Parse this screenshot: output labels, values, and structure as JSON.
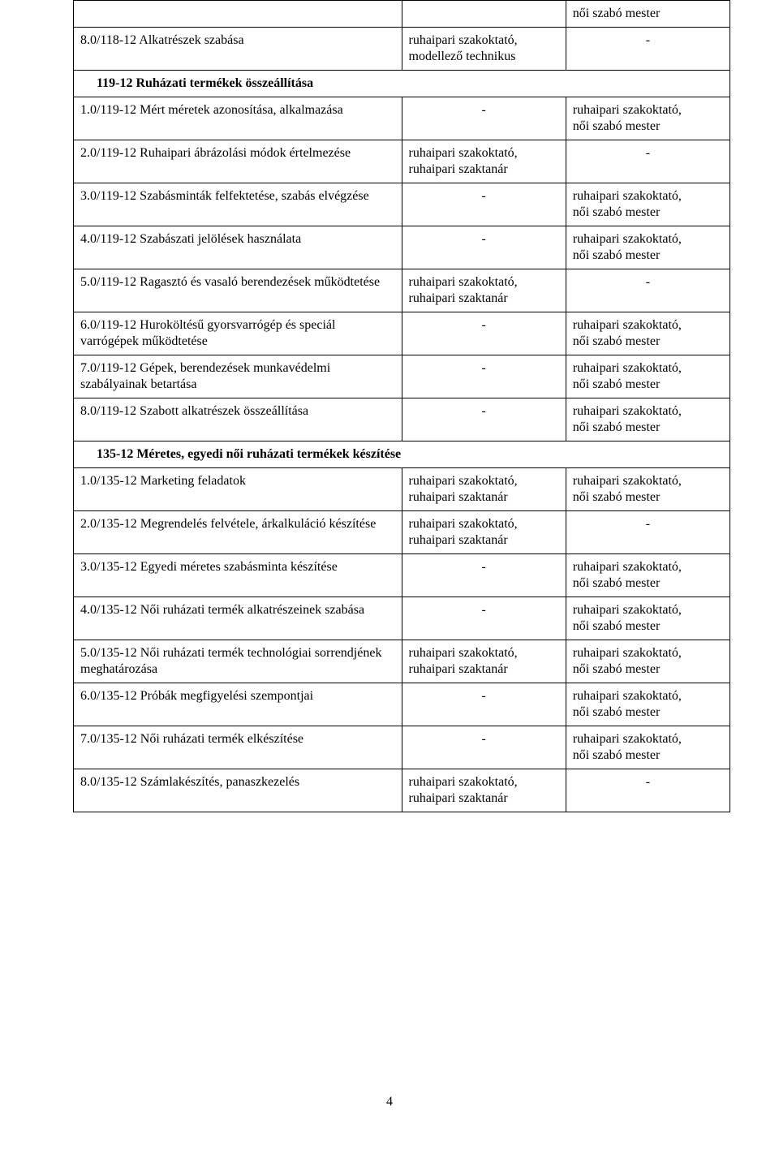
{
  "page_number": "4",
  "text": {
    "szakoktato_tech": "ruhaipari szakoktató,\nmodellező technikus",
    "szakoktato_szaktanar": "ruhaipari szakoktató,\nruhaipari szaktanár",
    "szakoktato_mester": "ruhaipari szakoktató,\nnői szabó mester",
    "mester_only": "női szabó mester",
    "dash": "-"
  },
  "rows": [
    {
      "type": "row",
      "c1": "",
      "c2": "",
      "c3_key": "mester_only"
    },
    {
      "type": "row",
      "c1": "8.0/118-12 Alkatrészek szabása",
      "c2_key": "szakoktato_tech",
      "c3_key": "dash",
      "c3_center": true
    },
    {
      "type": "header",
      "c1": "119-12 Ruházati termékek összeállítása"
    },
    {
      "type": "row",
      "c1": "1.0/119-12 Mért méretek azonosítása, alkalmazása",
      "c2_key": "dash",
      "c2_center": true,
      "c3_key": "szakoktato_mester"
    },
    {
      "type": "row",
      "c1": "2.0/119-12 Ruhaipari ábrázolási módok értelmezése",
      "c2_key": "szakoktato_szaktanar",
      "c3_key": "dash",
      "c3_center": true
    },
    {
      "type": "row",
      "c1": "3.0/119-12 Szabásminták felfektetése, szabás elvégzése",
      "c2_key": "dash",
      "c2_center": true,
      "c3_key": "szakoktato_mester"
    },
    {
      "type": "row",
      "c1": "4.0/119-12 Szabászati jelölések használata",
      "c2_key": "dash",
      "c2_center": true,
      "c3_key": "szakoktato_mester"
    },
    {
      "type": "row",
      "c1": "5.0/119-12 Ragasztó és vasaló berendezések működtetése",
      "c2_key": "szakoktato_szaktanar",
      "c3_key": "dash",
      "c3_center": true
    },
    {
      "type": "row",
      "c1": "6.0/119-12 Huroköltésű gyorsvarrógép és speciál varrógépek működtetése",
      "c2_key": "dash",
      "c2_center": true,
      "c3_key": "szakoktato_mester"
    },
    {
      "type": "row",
      "c1": "7.0/119-12 Gépek, berendezések munkavédelmi szabályainak betartása",
      "c2_key": "dash",
      "c2_center": true,
      "c3_key": "szakoktato_mester"
    },
    {
      "type": "row",
      "c1": "8.0/119-12 Szabott alkatrészek összeállítása",
      "c2_key": "dash",
      "c2_center": true,
      "c3_key": "szakoktato_mester"
    },
    {
      "type": "header",
      "c1": "135-12 Méretes, egyedi női ruházati termékek készítése"
    },
    {
      "type": "row",
      "c1": "1.0/135-12 Marketing feladatok",
      "c2_key": "szakoktato_szaktanar",
      "c3_key": "szakoktato_mester"
    },
    {
      "type": "row",
      "c1": "2.0/135-12 Megrendelés felvétele, árkalkuláció készítése",
      "c2_key": "szakoktato_szaktanar",
      "c3_key": "dash",
      "c3_center": true
    },
    {
      "type": "row",
      "c1": "3.0/135-12 Egyedi méretes szabásminta készítése",
      "c2_key": "dash",
      "c2_center": true,
      "c3_key": "szakoktato_mester"
    },
    {
      "type": "row",
      "c1": "4.0/135-12 Női ruházati termék alkatrészeinek szabása",
      "c2_key": "dash",
      "c2_center": true,
      "c3_key": "szakoktato_mester"
    },
    {
      "type": "row",
      "c1": "5.0/135-12 Női ruházati termék technológiai sorrendjének meghatározása",
      "c2_key": "szakoktato_szaktanar",
      "c3_key": "szakoktato_mester"
    },
    {
      "type": "row",
      "c1": "6.0/135-12 Próbák megfigyelési szempontjai",
      "c2_key": "dash",
      "c2_center": true,
      "c3_key": "szakoktato_mester"
    },
    {
      "type": "row",
      "c1": "7.0/135-12 Női ruházati termék elkészítése",
      "c2_key": "dash",
      "c2_center": true,
      "c3_key": "szakoktato_mester"
    },
    {
      "type": "row",
      "c1": "8.0/135-12 Számlakészítés, panaszkezelés",
      "c2_key": "szakoktato_szaktanar",
      "c3_key": "dash",
      "c3_center": true
    }
  ]
}
